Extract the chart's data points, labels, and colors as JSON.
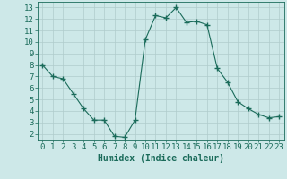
{
  "x": [
    0,
    1,
    2,
    3,
    4,
    5,
    6,
    7,
    8,
    9,
    10,
    11,
    12,
    13,
    14,
    15,
    16,
    17,
    18,
    19,
    20,
    21,
    22,
    23
  ],
  "y": [
    8.0,
    7.0,
    6.8,
    5.5,
    4.2,
    3.2,
    3.2,
    1.8,
    1.7,
    3.2,
    10.2,
    12.3,
    12.1,
    13.0,
    11.7,
    11.8,
    11.5,
    7.7,
    6.5,
    4.8,
    4.2,
    3.7,
    3.4,
    3.5
  ],
  "line_color": "#1a6b5a",
  "marker": "+",
  "marker_size": 4,
  "marker_lw": 1.0,
  "bg_color": "#cde8e8",
  "grid_color": "#b0cccc",
  "xlabel": "Humidex (Indice chaleur)",
  "xlim": [
    -0.5,
    23.5
  ],
  "ylim": [
    1.5,
    13.5
  ],
  "yticks": [
    2,
    3,
    4,
    5,
    6,
    7,
    8,
    9,
    10,
    11,
    12,
    13
  ],
  "xticks": [
    0,
    1,
    2,
    3,
    4,
    5,
    6,
    7,
    8,
    9,
    10,
    11,
    12,
    13,
    14,
    15,
    16,
    17,
    18,
    19,
    20,
    21,
    22,
    23
  ],
  "font_color": "#1a6b5a",
  "xlabel_fontsize": 7,
  "tick_fontsize": 6.5
}
